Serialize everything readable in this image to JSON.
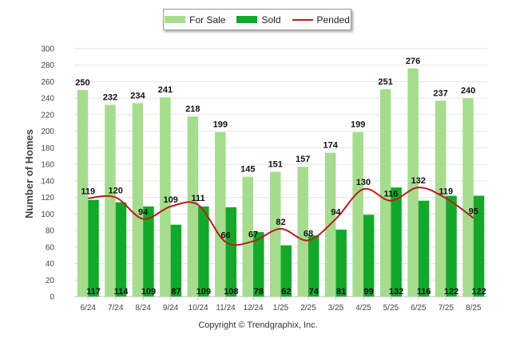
{
  "legend": {
    "for_sale": "For Sale",
    "sold": "Sold",
    "pended": "Pended"
  },
  "copyright": "Copyright © Trendgraphix, Inc.",
  "colors": {
    "for_sale": "#a6dc8e",
    "sold": "#14a82a",
    "pended": "#b51f1f",
    "grid": "#e6e6e6",
    "axis_text": "#444444"
  },
  "chart_data": {
    "type": "bar",
    "ylabel": "Number of Homes",
    "xlabel": "",
    "ylim": [
      0,
      300
    ],
    "yticks": [
      0,
      20,
      40,
      60,
      80,
      100,
      120,
      140,
      160,
      180,
      200,
      220,
      240,
      260,
      280,
      300
    ],
    "grid": true,
    "legend_position": "top-center",
    "categories": [
      "6/24",
      "7/24",
      "8/24",
      "9/24",
      "10/24",
      "11/24",
      "12/24",
      "1/25",
      "2/25",
      "3/25",
      "4/25",
      "5/25",
      "6/25",
      "7/25",
      "8/25"
    ],
    "series": [
      {
        "name": "For Sale",
        "type": "bar",
        "values": [
          250,
          232,
          234,
          241,
          218,
          199,
          145,
          151,
          157,
          174,
          199,
          251,
          276,
          237,
          240
        ]
      },
      {
        "name": "Sold",
        "type": "bar",
        "values": [
          117,
          114,
          109,
          87,
          109,
          108,
          78,
          62,
          74,
          81,
          99,
          132,
          116,
          122,
          122
        ]
      },
      {
        "name": "Pended",
        "type": "line",
        "values": [
          119,
          120,
          94,
          109,
          111,
          66,
          67,
          82,
          68,
          94,
          130,
          116,
          132,
          119,
          95
        ]
      }
    ]
  }
}
